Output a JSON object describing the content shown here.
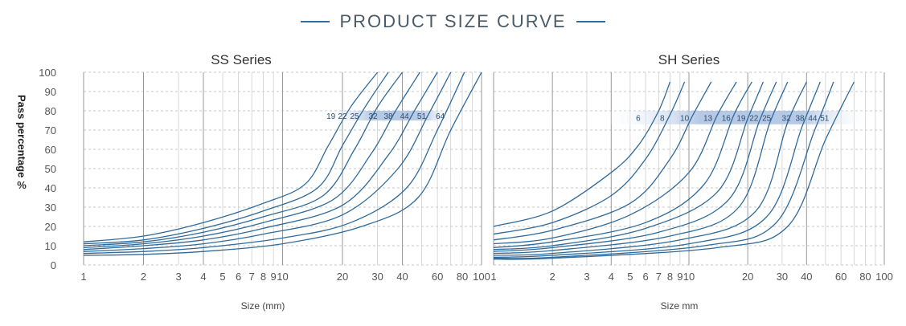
{
  "main_title": "PRODUCT SIZE CURVE",
  "ylabel": "Pass percentage",
  "ylabel_unit": "%",
  "colors": {
    "curve": "#2f6a9a",
    "grid_dash": "#c8c8c8",
    "grid_major": "#9a9a9a",
    "grid_minor": "#cfcfcf",
    "band_dark": "#a9bfe0",
    "band_light": "#ffffff",
    "title_dash": "#2f6f9f"
  },
  "chart_data": [
    {
      "type": "line",
      "title": "SS Series",
      "xlabel": "Size (mm)",
      "x_scale": "log",
      "xlim": [
        1,
        100
      ],
      "ylim": [
        0,
        100
      ],
      "y_ticks": [
        0,
        10,
        20,
        30,
        40,
        50,
        60,
        70,
        80,
        90,
        100
      ],
      "x_tick_labels": [
        {
          "v": 1,
          "t": "1"
        },
        {
          "v": 2,
          "t": "2"
        },
        {
          "v": 3,
          "t": "3"
        },
        {
          "v": 4,
          "t": "4"
        },
        {
          "v": 5,
          "t": "5"
        },
        {
          "v": 6,
          "t": "6"
        },
        {
          "v": 7,
          "t": "7"
        },
        {
          "v": 8,
          "t": "8"
        },
        {
          "v": 9,
          "t": "9"
        },
        {
          "v": 10,
          "t": "10"
        },
        {
          "v": 20,
          "t": "20"
        },
        {
          "v": 30,
          "t": "30"
        },
        {
          "v": 40,
          "t": "40"
        },
        {
          "v": 60,
          "t": "60"
        },
        {
          "v": 80,
          "t": "80"
        },
        {
          "v": 100,
          "t": "100"
        }
      ],
      "band_range": [
        17,
        72
      ],
      "band_y": [
        75,
        80
      ],
      "series": [
        {
          "name": "19",
          "label_x": 17.5,
          "points": [
            [
              1,
              12
            ],
            [
              2,
              15
            ],
            [
              4,
              22
            ],
            [
              8,
              32
            ],
            [
              13,
              42
            ],
            [
              17,
              62
            ],
            [
              22,
              82
            ],
            [
              30,
              100
            ]
          ]
        },
        {
          "name": "22",
          "label_x": 20,
          "points": [
            [
              1,
              11
            ],
            [
              2,
              13
            ],
            [
              4,
              19
            ],
            [
              8,
              28
            ],
            [
              15,
              40
            ],
            [
              20,
              62
            ],
            [
              26,
              82
            ],
            [
              34,
              100
            ]
          ]
        },
        {
          "name": "25",
          "label_x": 23,
          "points": [
            [
              1,
              10
            ],
            [
              2,
              12
            ],
            [
              4,
              17
            ],
            [
              8,
              25
            ],
            [
              16,
              36
            ],
            [
              23,
              60
            ],
            [
              30,
              82
            ],
            [
              40,
              100
            ]
          ]
        },
        {
          "name": "32",
          "label_x": 28.5,
          "points": [
            [
              1,
              9
            ],
            [
              2,
              11
            ],
            [
              4,
              15
            ],
            [
              8,
              22
            ],
            [
              18,
              34
            ],
            [
              28,
              58
            ],
            [
              37,
              80
            ],
            [
              49,
              100
            ]
          ]
        },
        {
          "name": "38",
          "label_x": 34,
          "points": [
            [
              1,
              8
            ],
            [
              2,
              10
            ],
            [
              4,
              13
            ],
            [
              8,
              19
            ],
            [
              20,
              31
            ],
            [
              34,
              57
            ],
            [
              46,
              80
            ],
            [
              60,
              100
            ]
          ]
        },
        {
          "name": "44",
          "label_x": 41,
          "points": [
            [
              1,
              7
            ],
            [
              2,
              8.5
            ],
            [
              4,
              11
            ],
            [
              8,
              16
            ],
            [
              20,
              26
            ],
            [
              38,
              50
            ],
            [
              54,
              78
            ],
            [
              70,
              100
            ]
          ]
        },
        {
          "name": "51",
          "label_x": 50,
          "points": [
            [
              1,
              6
            ],
            [
              2,
              7
            ],
            [
              4,
              9
            ],
            [
              10,
              14
            ],
            [
              22,
              22
            ],
            [
              42,
              40
            ],
            [
              60,
              70
            ],
            [
              82,
              100
            ]
          ]
        },
        {
          "name": "64",
          "label_x": 62,
          "points": [
            [
              1,
              5
            ],
            [
              2,
              5.5
            ],
            [
              4,
              7
            ],
            [
              10,
              11
            ],
            [
              25,
              20
            ],
            [
              48,
              35
            ],
            [
              70,
              70
            ],
            [
              100,
              100
            ]
          ]
        }
      ]
    },
    {
      "type": "line",
      "title": "SH Series",
      "xlabel": "Size mm",
      "x_scale": "log",
      "xlim": [
        1,
        100
      ],
      "ylim": [
        0,
        100
      ],
      "y_ticks": [
        0,
        10,
        20,
        30,
        40,
        50,
        60,
        70,
        80,
        90,
        100
      ],
      "x_tick_labels": [
        {
          "v": 1,
          "t": "1"
        },
        {
          "v": 2,
          "t": "2"
        },
        {
          "v": 3,
          "t": "3"
        },
        {
          "v": 4,
          "t": "4"
        },
        {
          "v": 5,
          "t": "5"
        },
        {
          "v": 6,
          "t": "6"
        },
        {
          "v": 7,
          "t": "7"
        },
        {
          "v": 8,
          "t": "8"
        },
        {
          "v": 9,
          "t": "9"
        },
        {
          "v": 10,
          "t": "10"
        },
        {
          "v": 20,
          "t": "20"
        },
        {
          "v": 30,
          "t": "30"
        },
        {
          "v": 40,
          "t": "40"
        },
        {
          "v": 60,
          "t": "60"
        },
        {
          "v": 80,
          "t": "80"
        },
        {
          "v": 100,
          "t": "100"
        }
      ],
      "band_range": [
        4,
        80
      ],
      "band_y": [
        73,
        80
      ],
      "series": [
        {
          "name": "6",
          "label_x": 5.5,
          "points": [
            [
              1,
              20
            ],
            [
              2,
              28
            ],
            [
              4,
              48
            ],
            [
              5.5,
              62
            ],
            [
              7,
              80
            ],
            [
              8,
              95
            ]
          ]
        },
        {
          "name": "8",
          "label_x": 7.3,
          "points": [
            [
              1,
              16
            ],
            [
              2,
              22
            ],
            [
              4,
              36
            ],
            [
              6,
              55
            ],
            [
              8,
              78
            ],
            [
              9.5,
              95
            ]
          ]
        },
        {
          "name": "10",
          "label_x": 9.5,
          "points": [
            [
              1,
              13
            ],
            [
              2,
              18
            ],
            [
              5,
              32
            ],
            [
              8,
              55
            ],
            [
              10.5,
              78
            ],
            [
              13,
              95
            ]
          ]
        },
        {
          "name": "13",
          "label_x": 12.5,
          "points": [
            [
              1,
              11
            ],
            [
              2,
              14
            ],
            [
              5,
              26
            ],
            [
              10,
              48
            ],
            [
              14,
              78
            ],
            [
              17.5,
              95
            ]
          ]
        },
        {
          "name": "16",
          "label_x": 15.5,
          "points": [
            [
              1,
              9
            ],
            [
              2,
              12
            ],
            [
              6,
              22
            ],
            [
              12,
              42
            ],
            [
              17,
              78
            ],
            [
              21,
              95
            ]
          ]
        },
        {
          "name": "19",
          "label_x": 18.5,
          "points": [
            [
              1,
              8
            ],
            [
              2,
              10
            ],
            [
              6,
              19
            ],
            [
              14,
              38
            ],
            [
              20,
              76
            ],
            [
              24,
              95
            ]
          ]
        },
        {
          "name": "22",
          "label_x": 21.5,
          "points": [
            [
              1,
              7
            ],
            [
              2,
              9
            ],
            [
              7,
              17
            ],
            [
              16,
              34
            ],
            [
              23,
              75
            ],
            [
              28,
              95
            ]
          ]
        },
        {
          "name": "25",
          "label_x": 25,
          "points": [
            [
              1,
              6
            ],
            [
              2,
              7.5
            ],
            [
              8,
              15
            ],
            [
              18,
              30
            ],
            [
              26,
              74
            ],
            [
              32,
              95
            ]
          ]
        },
        {
          "name": "32",
          "label_x": 31.5,
          "points": [
            [
              1,
              5
            ],
            [
              2,
              6
            ],
            [
              9,
              13
            ],
            [
              22,
              28
            ],
            [
              32,
              74
            ],
            [
              40,
              95
            ]
          ]
        },
        {
          "name": "38",
          "label_x": 37,
          "points": [
            [
              1,
              4
            ],
            [
              2,
              5
            ],
            [
              10,
              11
            ],
            [
              25,
              25
            ],
            [
              38,
              72
            ],
            [
              47,
              95
            ]
          ]
        },
        {
          "name": "44",
          "label_x": 43,
          "points": [
            [
              1,
              3.5
            ],
            [
              2,
              4
            ],
            [
              12,
              10
            ],
            [
              28,
              22
            ],
            [
              44,
              70
            ],
            [
              55,
              95
            ]
          ]
        },
        {
          "name": "51",
          "label_x": 49.5,
          "points": [
            [
              1,
              3
            ],
            [
              2,
              3.5
            ],
            [
              14,
              9
            ],
            [
              32,
              20
            ],
            [
              50,
              65
            ],
            [
              70,
              95
            ]
          ]
        }
      ]
    }
  ]
}
